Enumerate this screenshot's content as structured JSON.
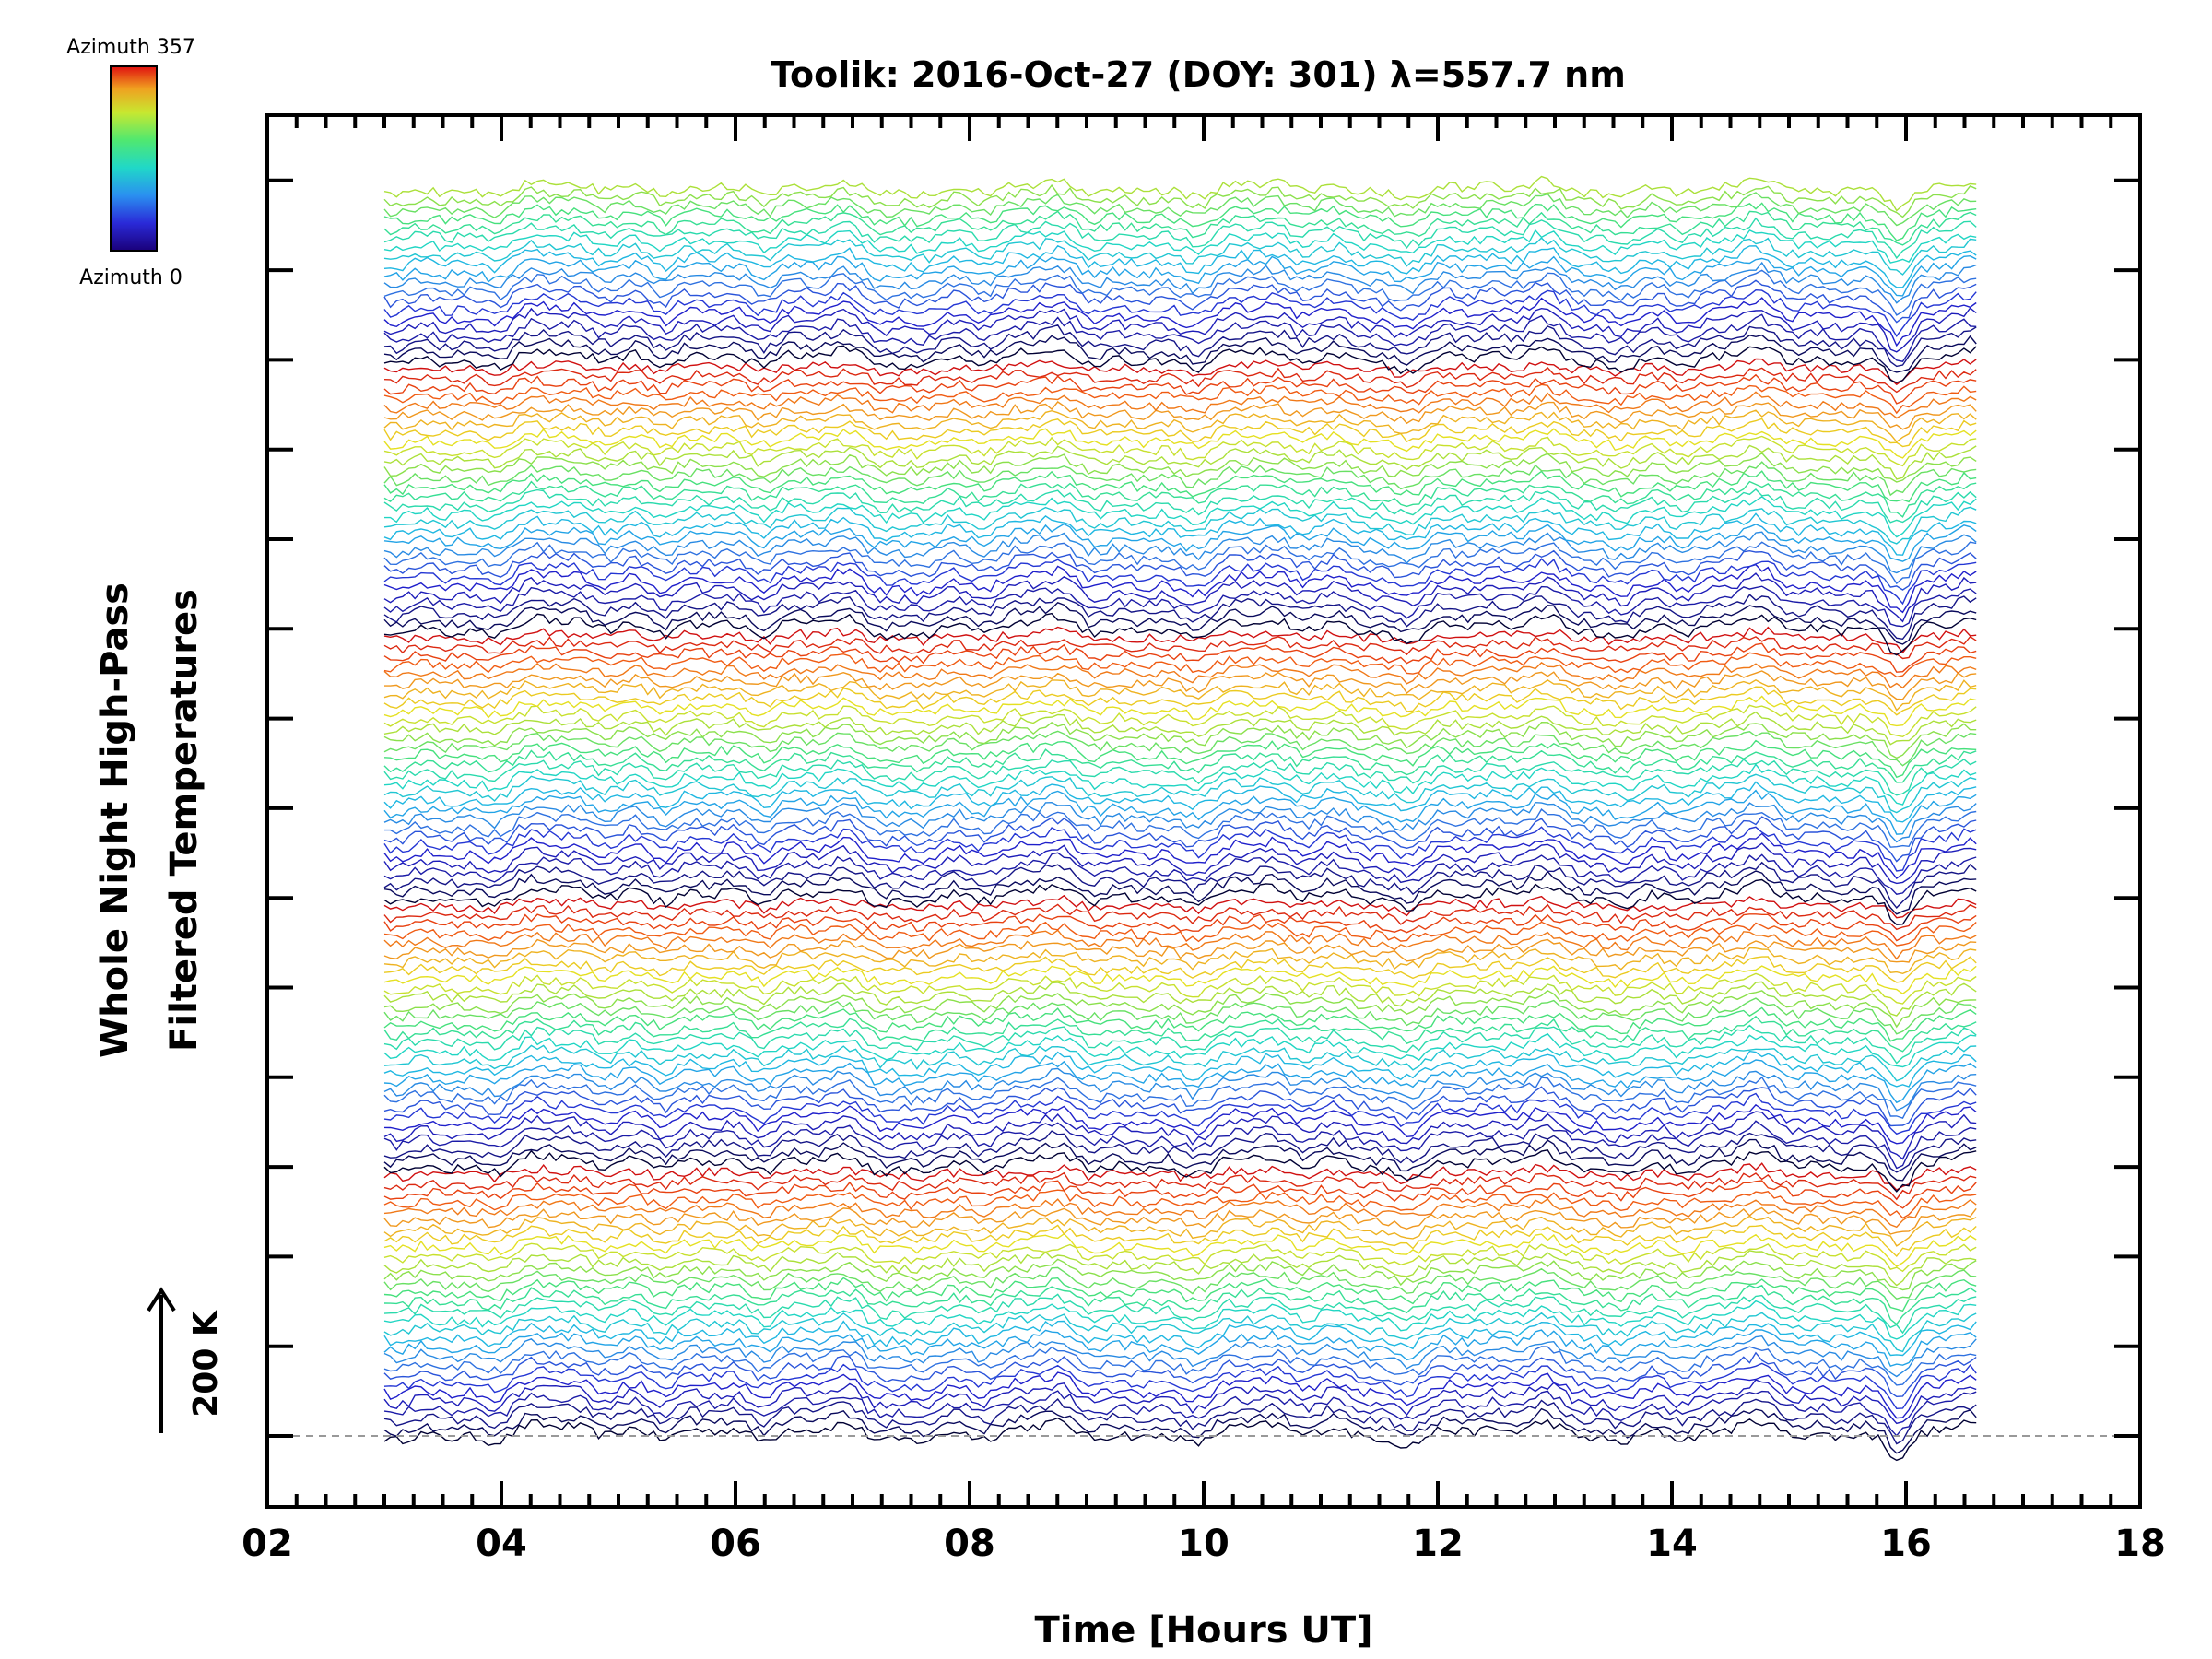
{
  "chart_data": {
    "type": "line",
    "title": "Toolik: 2016-Oct-27 (DOY: 301) λ=557.7 nm",
    "xlabel": "Time [Hours UT]",
    "ylabel_line1": "Whole Night High-Pass",
    "ylabel_line2": "Filtered Temperatures",
    "xlim": [
      2,
      18
    ],
    "x_ticks": [
      "02",
      "04",
      "06",
      "08",
      "10",
      "12",
      "14",
      "16",
      "18"
    ],
    "x_tick_values": [
      2,
      4,
      6,
      8,
      10,
      12,
      14,
      16,
      18
    ],
    "x_range_data": [
      3.0,
      16.6
    ],
    "y_offset_unit": "K",
    "scale_bar_label": "200 K",
    "legend": {
      "top_label": "Azimuth 357",
      "bottom_label": "Azimuth 0",
      "colormap": "rainbow"
    },
    "series_description": "stacked high-pass filtered temperature traces, one per azimuth, offset vertically",
    "series_count": 140,
    "azimuth_cycle_length": 30,
    "colors": [
      "#000033",
      "#1a1aa0",
      "#2020d0",
      "#2f6fe0",
      "#1fb0e8",
      "#20d8c0",
      "#40e080",
      "#9be040",
      "#e8e020",
      "#f0a020",
      "#f05010",
      "#d01010"
    ]
  }
}
